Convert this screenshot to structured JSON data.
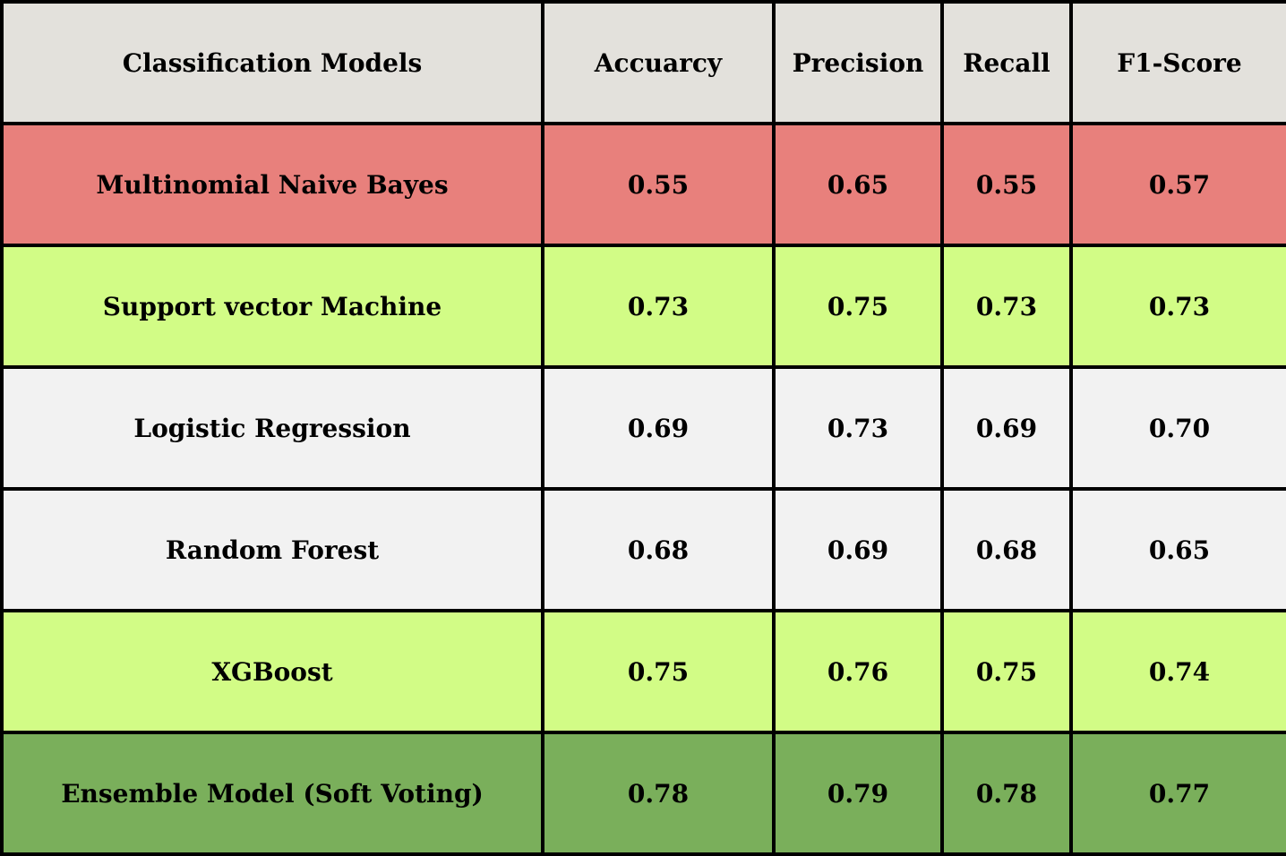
{
  "table": {
    "headers": [
      "Classification Models",
      "Accuarcy",
      "Precision",
      "Recall",
      "F1-Score"
    ],
    "header_bg": "#e3e1dc",
    "rows": [
      {
        "model": "Multinomial Naive Bayes",
        "accuracy": "0.55",
        "precision": "0.65",
        "recall": "0.55",
        "f1": "0.57",
        "bg": "#e8807c"
      },
      {
        "model": "Support vector Machine",
        "accuracy": "0.73",
        "precision": "0.75",
        "recall": "0.73",
        "f1": "0.73",
        "bg": "#d2fc86"
      },
      {
        "model": "Logistic Regression",
        "accuracy": "0.69",
        "precision": "0.73",
        "recall": "0.69",
        "f1": "0.70",
        "bg": "#f2f2f2"
      },
      {
        "model": "Random Forest",
        "accuracy": "0.68",
        "precision": "0.69",
        "recall": "0.68",
        "f1": "0.65",
        "bg": "#f2f2f2"
      },
      {
        "model": "XGBoost",
        "accuracy": "0.75",
        "precision": "0.76",
        "recall": "0.75",
        "f1": "0.74",
        "bg": "#d2fc86"
      },
      {
        "model": "Ensemble Model (Soft Voting)",
        "accuracy": "0.78",
        "precision": "0.79",
        "recall": "0.78",
        "f1": "0.77",
        "bg": "#7aaf5b"
      }
    ]
  }
}
